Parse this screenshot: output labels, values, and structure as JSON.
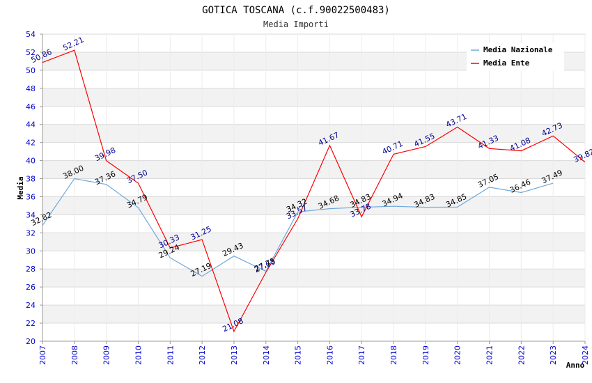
{
  "chart_data": {
    "type": "line",
    "title": "GOTICA TOSCANA (c.f.90022500483)",
    "subtitle": "Media Importi",
    "xlabel": "Anno",
    "ylabel": "Media",
    "ylim": [
      20,
      54
    ],
    "ystep": 2,
    "categories": [
      "2007",
      "2008",
      "2009",
      "2010",
      "2011",
      "2012",
      "2013",
      "2014",
      "2015",
      "2016",
      "2017",
      "2018",
      "2019",
      "2020",
      "2021",
      "2022",
      "2023",
      "2024"
    ],
    "series": [
      {
        "name": "Media Nazionale",
        "color": "#6fa8dc",
        "label_color": "#000000",
        "values": [
          32.82,
          38.0,
          37.36,
          34.79,
          29.24,
          27.19,
          29.43,
          27.75,
          34.32,
          34.68,
          34.83,
          34.94,
          34.83,
          34.85,
          37.05,
          36.46,
          37.49,
          null
        ],
        "labels": [
          "32.82",
          "38.00",
          "37.36",
          "34.79",
          "29.24",
          "27.19",
          "29.43",
          "27.75",
          "34.32",
          "34.68",
          "34.83",
          "34.94",
          "34.83",
          "34.85",
          "37.05",
          "36.46",
          "37.49",
          ""
        ]
      },
      {
        "name": "Media Ente",
        "color": "#ff0000",
        "label_color": "#00008b",
        "values": [
          50.86,
          52.21,
          39.98,
          37.5,
          30.33,
          31.25,
          21.08,
          27.63,
          33.57,
          41.67,
          33.78,
          40.71,
          41.55,
          43.71,
          41.33,
          41.08,
          42.73,
          39.82
        ],
        "labels": [
          "50.86",
          "52.21",
          "39.98",
          "37.50",
          "30.33",
          "31.25",
          "21.08",
          "27.63",
          "33.57",
          "41.67",
          "33.78",
          "40.71",
          "41.55",
          "43.71",
          "41.33",
          "41.08",
          "42.73",
          "39.82"
        ]
      }
    ],
    "grid": true,
    "legend": "top-right",
    "colors": {
      "axis_tick": "#0000cc",
      "band": "#f2f2f2",
      "grid": "#d9d9d9"
    }
  }
}
